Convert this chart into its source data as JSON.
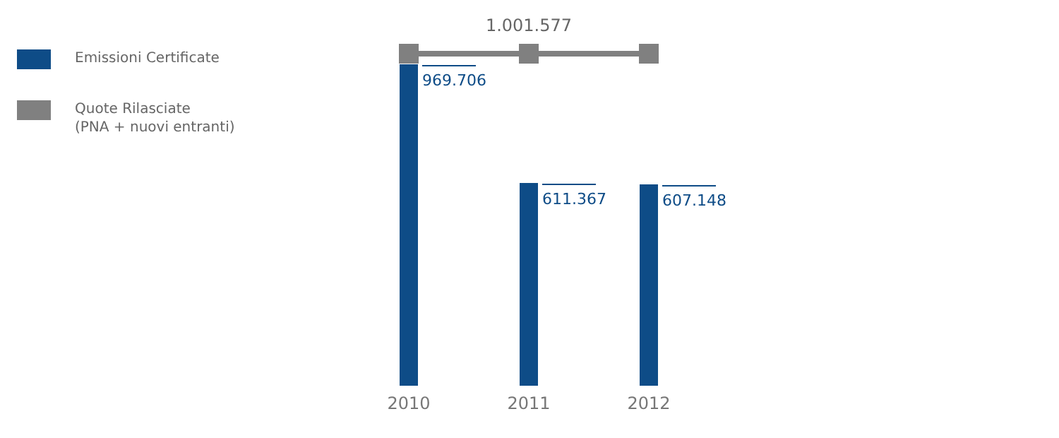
{
  "chart_data": {
    "type": "bar",
    "categories": [
      "2010",
      "2011",
      "2012"
    ],
    "series": [
      {
        "name": "Emissioni Certificate",
        "color": "#0e4c87",
        "values": [
          969706,
          611367,
          607148
        ],
        "value_labels": [
          "969.706",
          "611.367",
          "607.148"
        ]
      },
      {
        "name": "Quote Rilasciate\n(PNA + nuovi entranti)",
        "type": "line",
        "color": "#808080",
        "values": [
          1001577,
          1001577,
          1001577
        ],
        "value_labels": [
          null,
          "1.001.577",
          null
        ]
      }
    ],
    "marker": "square",
    "legend": "top left",
    "grid": false
  }
}
